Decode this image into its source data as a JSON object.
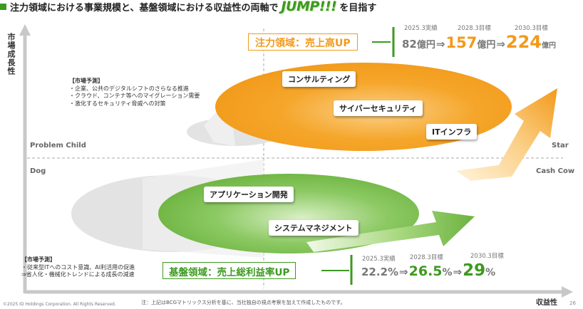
{
  "title": {
    "prefix": "注力領域における事業規模と、基盤領域における収益性の両軸で",
    "jump": "JUMP!!!",
    "suffix": "を目指す"
  },
  "axes": {
    "y_label": "市場成長性",
    "x_label": "収益性"
  },
  "quadrants": {
    "top_left": "Problem Child",
    "top_right": "Star",
    "bottom_left": "Dog",
    "bottom_right": "Cash Cow"
  },
  "focus": {
    "tag": "注力領域：売上高UP",
    "forecast_title": "【市場予測】",
    "forecast_items": [
      "・企業、公共のデジタルシフトのさらなる推進",
      "・クラウド、コンテナ等へのマイグレーション需要",
      "・激化するセキュリティ脅威への対策"
    ],
    "businesses": [
      "コンサルティング",
      "サイバーセキュリティ",
      "ITインフラ"
    ],
    "metrics": {
      "l1": "2025.3実績",
      "l2": "2028.3目標",
      "l3": "2030.3目標",
      "v1": "82",
      "u1": "億円",
      "arrow1": "⇒",
      "v2": "157",
      "u2": "億円",
      "arrow2": "⇒",
      "v3": "224",
      "u3": "億円"
    }
  },
  "base": {
    "tag": "基盤領域：売上総利益率UP",
    "forecast_title": "【市場予測】",
    "forecast_items": [
      "・従来型ITへのコスト意識、AI利活用の促進",
      "⇒省人化・機械化トレンドによる成長の減速"
    ],
    "businesses": [
      "アプリケーション開発",
      "システムマネジメント"
    ],
    "metrics": {
      "l1": "2025.3実績",
      "l2": "2028.3目標",
      "l3": "2030.3目標",
      "v1": "22.2%",
      "arrow1": "⇒",
      "v2": "26.5",
      "u2": "%",
      "arrow2": "⇒",
      "v3": "29",
      "u3": "%"
    }
  },
  "footer": {
    "copyright": "©2025 ID Holdings Corporation. All Rights Reserved.",
    "note": "注：上記はBCGマトリックス分析を基に、当社独自の視点考察を加えて作成したものです。",
    "page": "26"
  },
  "colors": {
    "orange": "#f29a1a",
    "orange_light": "#fde3b0",
    "green": "#6cb33f",
    "green_dark": "#3c9a1f",
    "green_light": "#cfe9b4",
    "gray": "#e3e3e3"
  }
}
